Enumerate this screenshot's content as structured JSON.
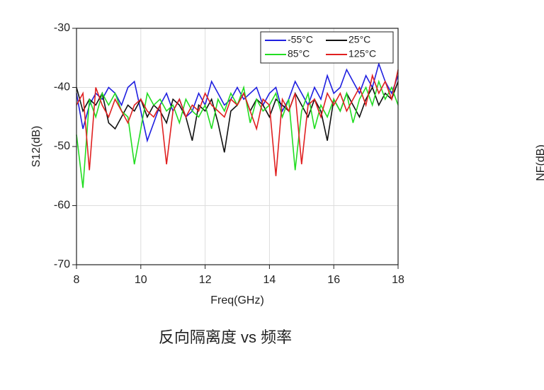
{
  "chart_data": {
    "type": "line",
    "x_label": "Freq(GHz)",
    "y_label": "S12(dB)",
    "xlim": [
      8,
      18
    ],
    "xticks": [
      8,
      10,
      12,
      14,
      16,
      18
    ],
    "ylim": [
      -70,
      -30
    ],
    "yticks": [
      -30,
      -40,
      -50,
      -60,
      -70
    ],
    "grid": true,
    "legend": "upper right",
    "x": [
      8,
      8.2,
      8.4,
      8.6,
      8.8,
      9,
      9.2,
      9.4,
      9.6,
      9.8,
      10,
      10.2,
      10.4,
      10.6,
      10.8,
      11,
      11.2,
      11.4,
      11.6,
      11.8,
      12,
      12.2,
      12.4,
      12.6,
      12.8,
      13,
      13.2,
      13.4,
      13.6,
      13.8,
      14,
      14.2,
      14.4,
      14.6,
      14.8,
      15,
      15.2,
      15.4,
      15.6,
      15.8,
      16,
      16.2,
      16.4,
      16.6,
      16.8,
      17,
      17.2,
      17.4,
      17.6,
      17.8,
      18
    ],
    "series": [
      {
        "name": "-55°C",
        "color": "#1f1fe0",
        "values": [
          -41,
          -47,
          -43,
          -41,
          -42,
          -40,
          -41,
          -43,
          -40,
          -39,
          -44,
          -49,
          -46,
          -43,
          -41,
          -44,
          -42,
          -45,
          -44,
          -41,
          -43,
          -39,
          -41,
          -43,
          -42,
          -40,
          -42,
          -41,
          -40,
          -43,
          -41,
          -40,
          -44,
          -42,
          -39,
          -41,
          -43,
          -40,
          -42,
          -38,
          -41,
          -40,
          -37,
          -39,
          -41,
          -38,
          -40,
          -36,
          -39,
          -41,
          -38
        ]
      },
      {
        "name": "25°C",
        "color": "#111111",
        "values": [
          -40,
          -44,
          -42,
          -43,
          -41,
          -46,
          -47,
          -45,
          -43,
          -44,
          -42,
          -45,
          -43,
          -44,
          -46,
          -42,
          -43,
          -45,
          -49,
          -43,
          -44,
          -42,
          -46,
          -51,
          -44,
          -43,
          -41,
          -44,
          -42,
          -43,
          -45,
          -42,
          -43,
          -44,
          -41,
          -43,
          -45,
          -42,
          -44,
          -49,
          -42,
          -44,
          -41,
          -43,
          -45,
          -42,
          -40,
          -43,
          -41,
          -42,
          -39
        ]
      },
      {
        "name": "85°C",
        "color": "#22dd22",
        "values": [
          -48,
          -57,
          -42,
          -45,
          -41,
          -43,
          -41,
          -44,
          -45,
          -53,
          -47,
          -41,
          -43,
          -42,
          -44,
          -43,
          -46,
          -42,
          -44,
          -45,
          -43,
          -47,
          -42,
          -44,
          -41,
          -43,
          -40,
          -46,
          -42,
          -44,
          -43,
          -41,
          -45,
          -42,
          -54,
          -44,
          -41,
          -47,
          -43,
          -45,
          -42,
          -44,
          -41,
          -46,
          -42,
          -40,
          -43,
          -39,
          -42,
          -40,
          -43
        ]
      },
      {
        "name": "125°C",
        "color": "#e02020",
        "values": [
          -43,
          -41,
          -54,
          -40,
          -43,
          -45,
          -42,
          -44,
          -46,
          -43,
          -42,
          -44,
          -45,
          -43,
          -53,
          -44,
          -42,
          -45,
          -43,
          -44,
          -41,
          -43,
          -44,
          -45,
          -42,
          -43,
          -41,
          -44,
          -47,
          -42,
          -43,
          -55,
          -42,
          -44,
          -41,
          -53,
          -43,
          -42,
          -45,
          -41,
          -43,
          -41,
          -44,
          -42,
          -40,
          -43,
          -38,
          -41,
          -39,
          -42,
          -37
        ]
      }
    ]
  },
  "caption": "反向隔离度 vs 频率",
  "partial_chart": {
    "y_label": "NF(dB)"
  }
}
